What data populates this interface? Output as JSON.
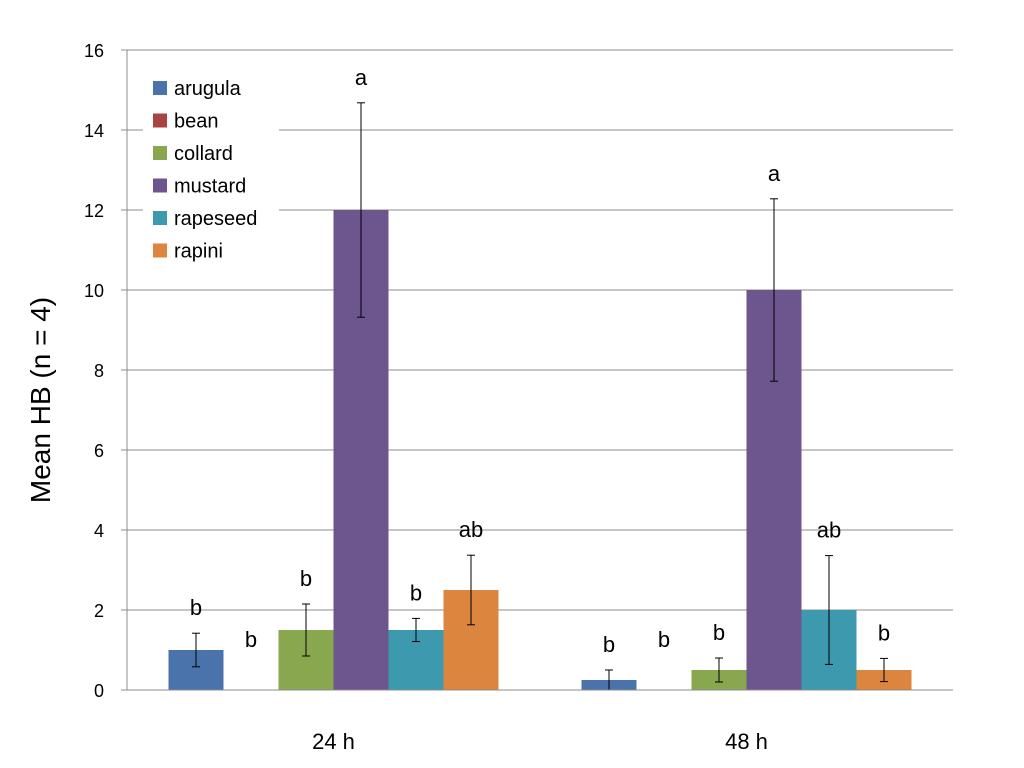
{
  "chart_data": {
    "type": "bar",
    "title": "",
    "xlabel": "",
    "ylabel": "Mean HB  (n = 4)",
    "ylim": [
      0,
      16
    ],
    "yticks": [
      "0",
      "2",
      "4",
      "6",
      "8",
      "10",
      "12",
      "14",
      "16"
    ],
    "grid": true,
    "legend_position": "top-left",
    "categories": [
      "24 h",
      "48 h"
    ],
    "series": [
      {
        "name": "arugula",
        "color": "#4A73AB",
        "values": [
          1.0,
          0.25
        ],
        "errors": [
          0.42,
          0.25
        ],
        "letters": [
          "b",
          "b"
        ]
      },
      {
        "name": "bean",
        "color": "#A94442",
        "values": [
          0,
          0
        ],
        "errors": [
          0,
          0
        ],
        "letters": [
          "b",
          "b"
        ]
      },
      {
        "name": "collard",
        "color": "#88A74F",
        "values": [
          1.5,
          0.5
        ],
        "errors": [
          0.65,
          0.3
        ],
        "letters": [
          "b",
          "b"
        ]
      },
      {
        "name": "mustard",
        "color": "#6D558D",
        "values": [
          12.0,
          10.0
        ],
        "errors": [
          2.68,
          2.28
        ],
        "letters": [
          "a",
          "a"
        ]
      },
      {
        "name": "rapeseed",
        "color": "#3D9AAE",
        "values": [
          1.5,
          2.0
        ],
        "errors": [
          0.29,
          1.36
        ],
        "letters": [
          "b",
          "ab"
        ]
      },
      {
        "name": "rapini",
        "color": "#DC853E",
        "values": [
          2.5,
          0.5
        ],
        "errors": [
          0.87,
          0.29
        ],
        "letters": [
          "ab",
          "b"
        ]
      }
    ]
  }
}
